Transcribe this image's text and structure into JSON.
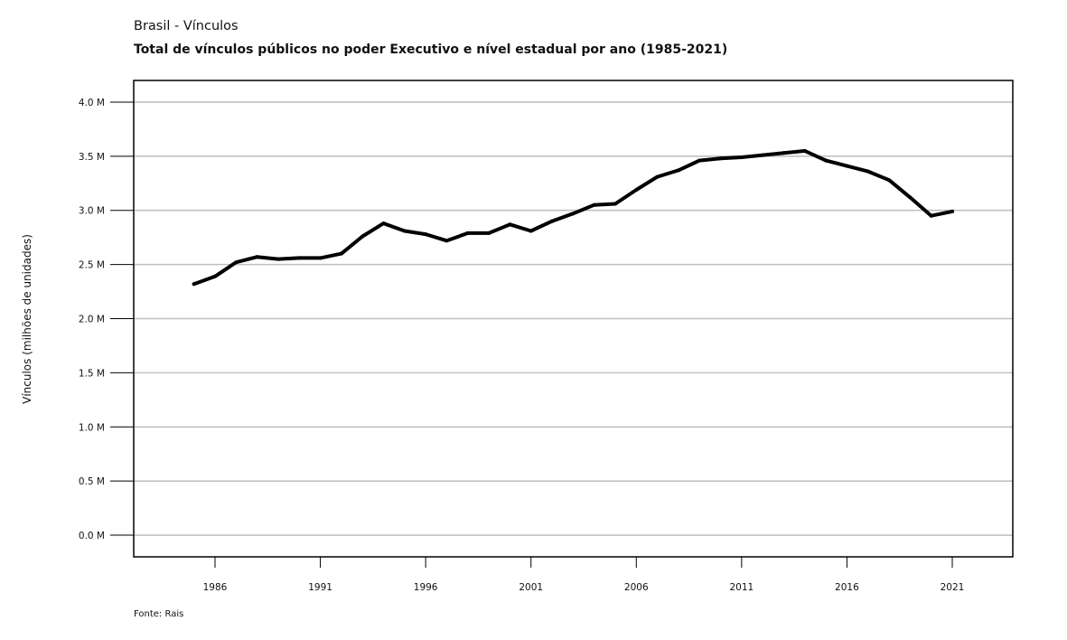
{
  "header": {
    "title": "Brasil - Vínculos",
    "subtitle": "Total de vínculos públicos no poder Executivo e nível estadual por ano (1985-2021)"
  },
  "footer": {
    "source": "Fonte: Rais"
  },
  "chart_data": {
    "type": "line",
    "title": "Brasil - Vínculos",
    "subtitle": "Total de vínculos públicos no poder Executivo e nível estadual por ano (1985-2021)",
    "xlabel": "",
    "ylabel": "Vínculos (milhões de unidades)",
    "x": [
      1985,
      1986,
      1987,
      1988,
      1989,
      1990,
      1991,
      1992,
      1993,
      1994,
      1995,
      1996,
      1997,
      1998,
      1999,
      2000,
      2001,
      2002,
      2003,
      2004,
      2005,
      2006,
      2007,
      2008,
      2009,
      2010,
      2011,
      2012,
      2013,
      2014,
      2015,
      2016,
      2017,
      2018,
      2019,
      2020,
      2021
    ],
    "series": [
      {
        "name": "",
        "color": "#000000",
        "values": [
          2.32,
          2.39,
          2.52,
          2.57,
          2.55,
          2.56,
          2.56,
          2.6,
          2.76,
          2.88,
          2.81,
          2.78,
          2.72,
          2.79,
          2.79,
          2.87,
          2.81,
          2.9,
          2.97,
          3.05,
          3.06,
          3.19,
          3.31,
          3.37,
          3.46,
          3.48,
          3.49,
          3.51,
          3.53,
          3.55,
          3.46,
          3.41,
          3.36,
          3.28,
          3.12,
          2.95,
          2.99
        ]
      }
    ],
    "xlim": [
      1982.1,
      1987.0
    ],
    "x_ticks": [
      1986,
      1991,
      1996,
      2001,
      2006,
      2011,
      2016,
      2021
    ],
    "x_tick_labels": [
      "1986",
      "1991",
      "1996",
      "2001",
      "2006",
      "2011",
      "2016",
      "2021"
    ],
    "ylim": [
      -0.2,
      4.2
    ],
    "y_ticks": [
      0.0,
      0.5,
      1.0,
      1.5,
      2.0,
      2.5,
      3.0,
      3.5,
      4.0
    ],
    "y_tick_labels": [
      "0.0 M",
      "0.5 M",
      "1.0 M",
      "1.5 M",
      "2.0 M",
      "2.5 M",
      "3.0 M",
      "3.5 M",
      "4.0 M"
    ],
    "grid": true,
    "grid_color": "#c0c0c0",
    "legend": "none"
  }
}
